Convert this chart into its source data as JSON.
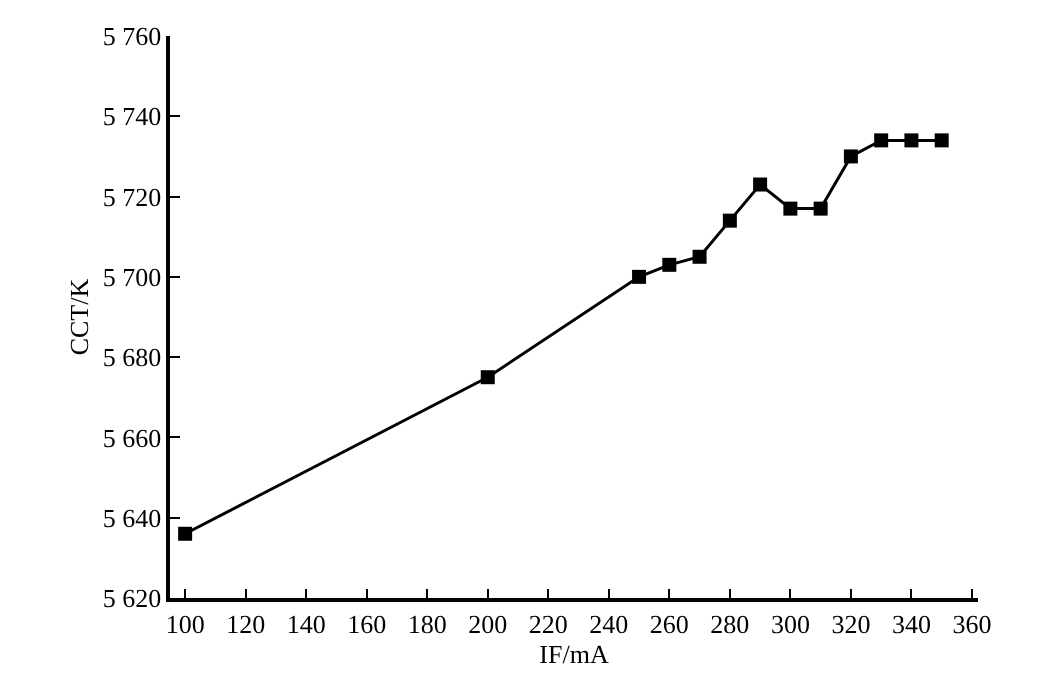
{
  "chart_data": {
    "type": "line",
    "xlabel": "IF/mA",
    "ylabel": "CCT/K",
    "x": [
      100,
      200,
      250,
      260,
      270,
      280,
      290,
      300,
      310,
      320,
      330,
      340,
      350
    ],
    "series": [
      {
        "color": "#000000",
        "values": [
          5636,
          5675,
          5700,
          5703,
          5705,
          5714,
          5723,
          5717,
          5717,
          5730,
          5734,
          5734,
          5734
        ]
      }
    ],
    "xlim": [
      95,
      362
    ],
    "xticks": [
      100,
      120,
      140,
      160,
      180,
      200,
      220,
      240,
      260,
      280,
      300,
      320,
      340,
      360
    ],
    "ylim": [
      5620,
      5760
    ],
    "yticks": [
      {
        "value": 5620,
        "label": "5 620"
      },
      {
        "value": 5640,
        "label": "5 640"
      },
      {
        "value": 5660,
        "label": "5 660"
      },
      {
        "value": 5680,
        "label": "5 680"
      },
      {
        "value": 5700,
        "label": "5 700"
      },
      {
        "value": 5720,
        "label": "5 720"
      },
      {
        "value": 5740,
        "label": "5 740"
      },
      {
        "value": 5760,
        "label": "5 760"
      }
    ],
    "marker": "square",
    "line_style": "solid",
    "legend": false
  }
}
